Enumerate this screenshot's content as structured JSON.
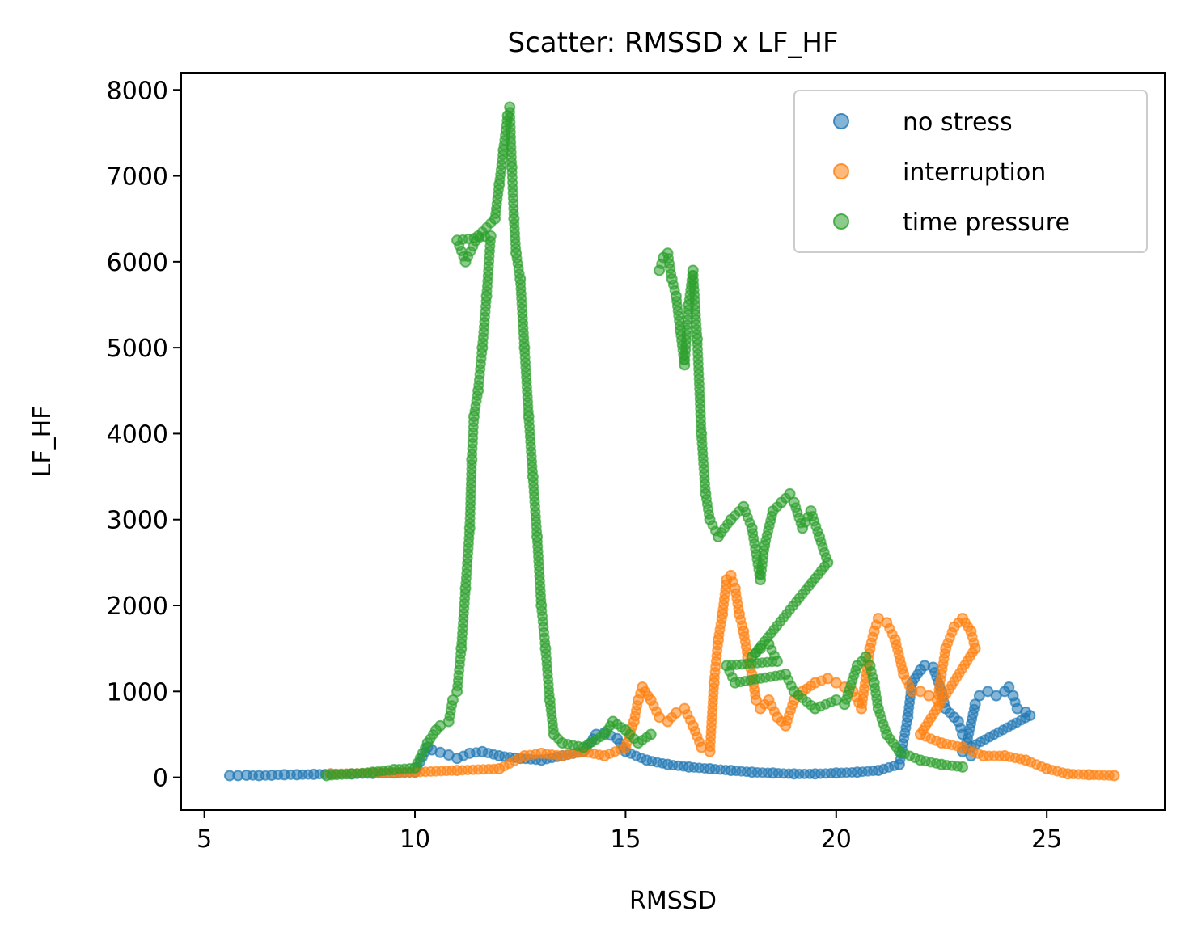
{
  "chart_data": {
    "type": "scatter",
    "title": "Scatter: RMSSD x LF_HF",
    "xlabel": "RMSSD",
    "ylabel": "LF_HF",
    "xlim": [
      4.45,
      27.8
    ],
    "ylim": [
      -380,
      8200
    ],
    "xticks": [
      5,
      10,
      15,
      20,
      25
    ],
    "yticks": [
      0,
      1000,
      2000,
      3000,
      4000,
      5000,
      6000,
      7000,
      8000
    ],
    "grid": false,
    "legend": "top-right",
    "series": [
      {
        "name": "no stress",
        "color": "#1f77b4",
        "points": [
          [
            5.6,
            20
          ],
          [
            5.8,
            20
          ],
          [
            6.0,
            25
          ],
          [
            6.3,
            20
          ],
          [
            6.6,
            25
          ],
          [
            6.9,
            30
          ],
          [
            7.2,
            30
          ],
          [
            7.6,
            35
          ],
          [
            8.0,
            40
          ],
          [
            8.5,
            40
          ],
          [
            9.0,
            45
          ],
          [
            9.5,
            50
          ],
          [
            10.0,
            60
          ],
          [
            10.3,
            350
          ],
          [
            10.4,
            320
          ],
          [
            10.6,
            290
          ],
          [
            10.8,
            260
          ],
          [
            11.0,
            220
          ],
          [
            11.3,
            280
          ],
          [
            11.6,
            300
          ],
          [
            12.0,
            250
          ],
          [
            12.5,
            220
          ],
          [
            13.0,
            200
          ],
          [
            13.5,
            250
          ],
          [
            14.0,
            300
          ],
          [
            14.3,
            500
          ],
          [
            14.5,
            520
          ],
          [
            14.8,
            450
          ],
          [
            15.0,
            300
          ],
          [
            15.5,
            200
          ],
          [
            16.0,
            150
          ],
          [
            16.5,
            120
          ],
          [
            17.0,
            100
          ],
          [
            17.5,
            80
          ],
          [
            18.0,
            60
          ],
          [
            18.5,
            50
          ],
          [
            19.0,
            40
          ],
          [
            19.5,
            40
          ],
          [
            20.0,
            50
          ],
          [
            20.5,
            60
          ],
          [
            21.0,
            80
          ],
          [
            21.5,
            150
          ],
          [
            21.7,
            700
          ],
          [
            21.8,
            1100
          ],
          [
            22.0,
            1250
          ],
          [
            22.1,
            1300
          ],
          [
            22.3,
            1280
          ],
          [
            22.5,
            1000
          ],
          [
            22.6,
            800
          ],
          [
            22.8,
            700
          ],
          [
            22.9,
            650
          ],
          [
            23.0,
            500
          ],
          [
            23.1,
            400
          ],
          [
            23.3,
            850
          ],
          [
            23.4,
            950
          ],
          [
            23.6,
            1000
          ],
          [
            23.8,
            950
          ],
          [
            24.0,
            1000
          ],
          [
            24.1,
            1050
          ],
          [
            24.2,
            950
          ],
          [
            24.3,
            800
          ],
          [
            24.5,
            760
          ],
          [
            24.6,
            720
          ],
          [
            23.0,
            300
          ],
          [
            23.2,
            250
          ]
        ]
      },
      {
        "name": "interruption",
        "color": "#ff7f0e",
        "points": [
          [
            8.0,
            40
          ],
          [
            9.0,
            50
          ],
          [
            10.0,
            60
          ],
          [
            11.0,
            80
          ],
          [
            12.0,
            100
          ],
          [
            12.6,
            250
          ],
          [
            13.0,
            280
          ],
          [
            13.5,
            250
          ],
          [
            14.0,
            300
          ],
          [
            14.5,
            250
          ],
          [
            15.0,
            350
          ],
          [
            15.2,
            650
          ],
          [
            15.3,
            900
          ],
          [
            15.4,
            1050
          ],
          [
            15.6,
            900
          ],
          [
            15.8,
            700
          ],
          [
            16.0,
            650
          ],
          [
            16.2,
            750
          ],
          [
            16.4,
            800
          ],
          [
            16.6,
            600
          ],
          [
            16.8,
            350
          ],
          [
            17.0,
            300
          ],
          [
            17.1,
            1100
          ],
          [
            17.2,
            1600
          ],
          [
            17.3,
            1900
          ],
          [
            17.4,
            2300
          ],
          [
            17.5,
            2350
          ],
          [
            17.6,
            2200
          ],
          [
            17.7,
            1900
          ],
          [
            17.8,
            1700
          ],
          [
            17.9,
            1400
          ],
          [
            18.0,
            1200
          ],
          [
            18.1,
            900
          ],
          [
            18.2,
            800
          ],
          [
            18.4,
            900
          ],
          [
            18.6,
            700
          ],
          [
            18.8,
            600
          ],
          [
            19.0,
            900
          ],
          [
            19.2,
            1000
          ],
          [
            19.5,
            1100
          ],
          [
            19.8,
            1150
          ],
          [
            20.0,
            1100
          ],
          [
            20.2,
            1050
          ],
          [
            20.4,
            1000
          ],
          [
            20.6,
            800
          ],
          [
            20.8,
            1500
          ],
          [
            20.9,
            1700
          ],
          [
            21.0,
            1850
          ],
          [
            21.2,
            1800
          ],
          [
            21.4,
            1600
          ],
          [
            21.6,
            1200
          ],
          [
            21.8,
            1000
          ],
          [
            22.0,
            1000
          ],
          [
            22.2,
            950
          ],
          [
            22.4,
            900
          ],
          [
            22.6,
            1500
          ],
          [
            22.8,
            1750
          ],
          [
            23.0,
            1850
          ],
          [
            23.2,
            1700
          ],
          [
            23.3,
            1500
          ],
          [
            22.0,
            500
          ],
          [
            22.5,
            400
          ],
          [
            23.0,
            350
          ],
          [
            23.5,
            250
          ],
          [
            24.0,
            250
          ],
          [
            24.5,
            200
          ],
          [
            25.0,
            100
          ],
          [
            25.5,
            40
          ],
          [
            26.0,
            30
          ],
          [
            26.6,
            20
          ]
        ]
      },
      {
        "name": "time pressure",
        "color": "#2ca02c",
        "points": [
          [
            7.9,
            20
          ],
          [
            8.5,
            40
          ],
          [
            9.0,
            60
          ],
          [
            9.5,
            90
          ],
          [
            10.0,
            110
          ],
          [
            10.3,
            400
          ],
          [
            10.5,
            550
          ],
          [
            10.6,
            600
          ],
          [
            10.8,
            650
          ],
          [
            10.9,
            900
          ],
          [
            11.0,
            1000
          ],
          [
            11.1,
            1500
          ],
          [
            11.2,
            2200
          ],
          [
            11.3,
            2900
          ],
          [
            11.35,
            3700
          ],
          [
            11.4,
            4200
          ],
          [
            11.5,
            4500
          ],
          [
            11.6,
            5000
          ],
          [
            11.7,
            5600
          ],
          [
            11.8,
            6300
          ],
          [
            11.0,
            6250
          ],
          [
            11.2,
            6000
          ],
          [
            11.5,
            6300
          ],
          [
            11.9,
            6500
          ],
          [
            12.0,
            6900
          ],
          [
            12.1,
            7300
          ],
          [
            12.2,
            7700
          ],
          [
            12.25,
            7800
          ],
          [
            12.3,
            7100
          ],
          [
            12.35,
            6500
          ],
          [
            12.4,
            6100
          ],
          [
            12.5,
            5800
          ],
          [
            12.6,
            5000
          ],
          [
            12.7,
            4200
          ],
          [
            12.8,
            3500
          ],
          [
            12.9,
            2800
          ],
          [
            13.0,
            2000
          ],
          [
            13.1,
            1500
          ],
          [
            13.2,
            900
          ],
          [
            13.3,
            500
          ],
          [
            13.5,
            400
          ],
          [
            14.0,
            350
          ],
          [
            14.5,
            500
          ],
          [
            14.7,
            650
          ],
          [
            15.0,
            550
          ],
          [
            15.3,
            400
          ],
          [
            15.6,
            500
          ],
          [
            15.8,
            5900
          ],
          [
            15.9,
            6050
          ],
          [
            16.0,
            6100
          ],
          [
            16.1,
            5800
          ],
          [
            16.2,
            5600
          ],
          [
            16.3,
            5200
          ],
          [
            16.4,
            4800
          ],
          [
            16.5,
            5500
          ],
          [
            16.6,
            5900
          ],
          [
            16.7,
            5100
          ],
          [
            16.8,
            4000
          ],
          [
            16.9,
            3300
          ],
          [
            17.0,
            3000
          ],
          [
            17.2,
            2800
          ],
          [
            17.5,
            3000
          ],
          [
            17.8,
            3150
          ],
          [
            18.0,
            2900
          ],
          [
            18.2,
            2300
          ],
          [
            18.3,
            2700
          ],
          [
            18.5,
            3100
          ],
          [
            18.7,
            3200
          ],
          [
            18.9,
            3300
          ],
          [
            19.0,
            3200
          ],
          [
            19.2,
            2900
          ],
          [
            19.4,
            3100
          ],
          [
            19.6,
            2800
          ],
          [
            19.8,
            2500
          ],
          [
            18.0,
            1400
          ],
          [
            18.2,
            1500
          ],
          [
            18.4,
            1550
          ],
          [
            18.6,
            1350
          ],
          [
            17.4,
            1300
          ],
          [
            17.6,
            1100
          ],
          [
            18.8,
            1200
          ],
          [
            19.0,
            1000
          ],
          [
            19.5,
            800
          ],
          [
            20.0,
            900
          ],
          [
            20.2,
            850
          ],
          [
            20.5,
            1300
          ],
          [
            20.7,
            1400
          ],
          [
            20.8,
            1300
          ],
          [
            20.9,
            1100
          ],
          [
            21.0,
            800
          ],
          [
            21.2,
            500
          ],
          [
            21.5,
            300
          ],
          [
            22.0,
            200
          ],
          [
            22.5,
            150
          ],
          [
            23.0,
            120
          ]
        ]
      }
    ]
  }
}
